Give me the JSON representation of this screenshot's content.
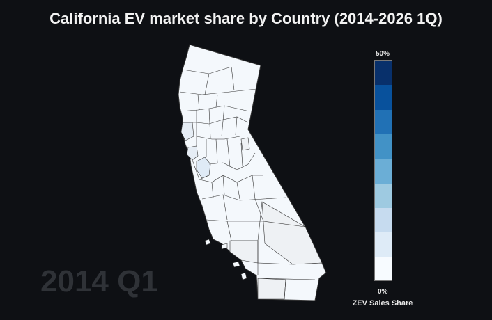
{
  "title": "California EV market share by Country (2014-2026 1Q)",
  "period_label": "2014 Q1",
  "colorbar": {
    "title": "ZEV Sales Share",
    "max_label": "50%",
    "min_label": "0%",
    "min_value": 0,
    "max_value": 50,
    "colors": [
      "#f7fbff",
      "#deebf7",
      "#c6dbef",
      "#9ecae1",
      "#6baed6",
      "#4292c6",
      "#2171b5",
      "#08519c",
      "#08306b"
    ]
  },
  "map": {
    "base_fill": "#f4f8fc",
    "border_color": "#333333",
    "highlight_fills": [
      "#dfeaf6",
      "#e6edf5",
      "#eef1f4"
    ]
  }
}
